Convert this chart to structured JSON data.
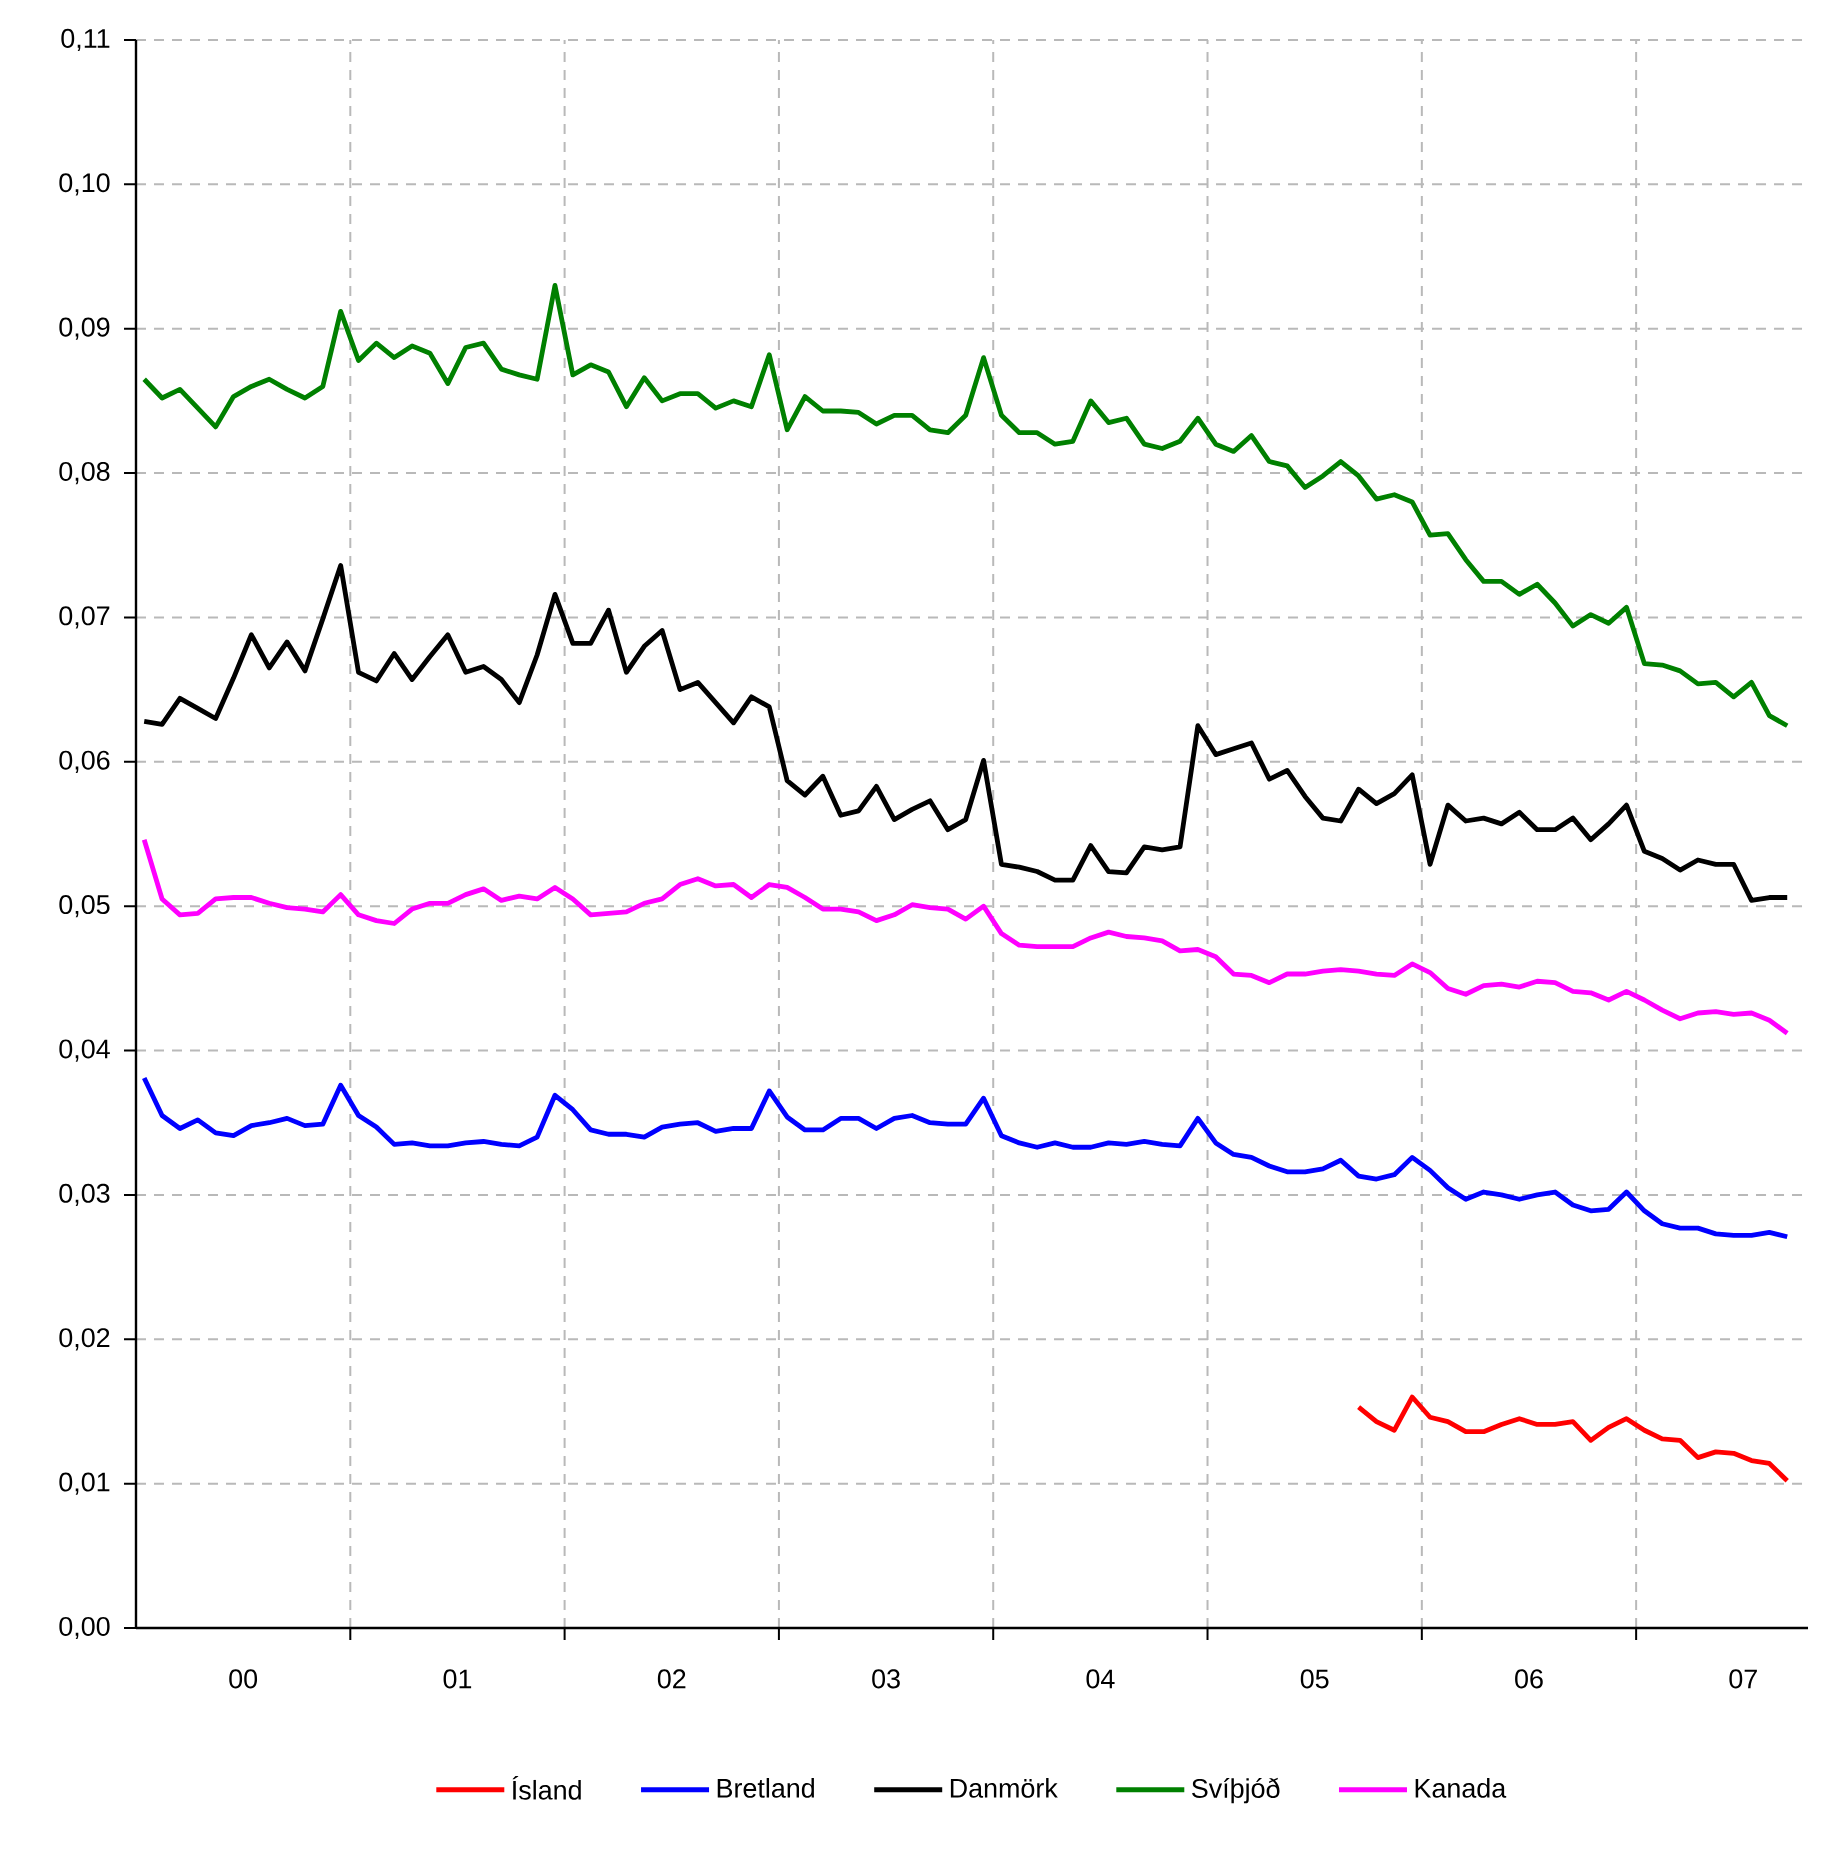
{
  "chart_data": {
    "type": "line",
    "x": [
      "2000-01-15",
      "2000-02-15",
      "2000-03-15",
      "2000-04-15",
      "2000-05-15",
      "2000-06-15",
      "2000-07-15",
      "2000-08-15",
      "2000-09-15",
      "2000-10-15",
      "2000-11-15",
      "2000-12-15",
      "2001-01-15",
      "2001-02-15",
      "2001-03-15",
      "2001-04-15",
      "2001-05-15",
      "2001-06-15",
      "2001-07-15",
      "2001-08-15",
      "2001-09-15",
      "2001-10-15",
      "2001-11-15",
      "2001-12-15",
      "2002-01-15",
      "2002-02-15",
      "2002-03-15",
      "2002-04-15",
      "2002-05-15",
      "2002-06-15",
      "2002-07-15",
      "2002-08-15",
      "2002-09-15",
      "2002-10-15",
      "2002-11-15",
      "2002-12-15",
      "2003-01-15",
      "2003-02-15",
      "2003-03-15",
      "2003-04-15",
      "2003-05-15",
      "2003-06-15",
      "2003-07-15",
      "2003-08-15",
      "2003-09-15",
      "2003-10-15",
      "2003-11-15",
      "2003-12-15",
      "2004-01-15",
      "2004-02-15",
      "2004-03-15",
      "2004-04-15",
      "2004-05-15",
      "2004-06-15",
      "2004-07-15",
      "2004-08-15",
      "2004-09-15",
      "2004-10-15",
      "2004-11-15",
      "2004-12-15",
      "2005-01-15",
      "2005-02-15",
      "2005-03-15",
      "2005-04-15",
      "2005-05-15",
      "2005-06-15",
      "2005-07-15",
      "2005-08-15",
      "2005-09-15",
      "2005-10-15",
      "2005-11-15",
      "2005-12-15",
      "2006-01-15",
      "2006-02-15",
      "2006-03-15",
      "2006-04-15",
      "2006-05-15",
      "2006-06-15",
      "2006-07-15",
      "2006-08-15",
      "2006-09-15",
      "2006-10-15",
      "2006-11-15",
      "2006-12-15",
      "2007-01-15",
      "2007-02-15",
      "2007-03-15",
      "2007-04-15",
      "2007-05-15",
      "2007-06-15",
      "2007-07-15",
      "2007-08-15",
      "2007-09-15"
    ],
    "series": [
      {
        "name": "Ísland",
        "color": "#ff0000",
        "values": [
          null,
          null,
          null,
          null,
          null,
          null,
          null,
          null,
          null,
          null,
          null,
          null,
          null,
          null,
          null,
          null,
          null,
          null,
          null,
          null,
          null,
          null,
          null,
          null,
          null,
          null,
          null,
          null,
          null,
          null,
          null,
          null,
          null,
          null,
          null,
          null,
          null,
          null,
          null,
          null,
          null,
          null,
          null,
          null,
          null,
          null,
          null,
          null,
          null,
          null,
          null,
          null,
          null,
          null,
          null,
          null,
          null,
          null,
          null,
          null,
          null,
          null,
          null,
          null,
          null,
          null,
          null,
          null,
          0.0153,
          0.0143,
          0.0137,
          0.016,
          0.0146,
          0.0143,
          0.0136,
          0.0136,
          0.0141,
          0.0145,
          0.0141,
          0.0141,
          0.0143,
          0.013,
          0.0139,
          0.0145,
          0.0137,
          0.0131,
          0.013,
          0.0118,
          0.0122,
          0.0121,
          0.0116,
          0.0114,
          0.0102
        ]
      },
      {
        "name": "Bretland",
        "color": "#0000ff",
        "values": [
          0.0381,
          0.0355,
          0.0346,
          0.0352,
          0.0343,
          0.0341,
          0.0348,
          0.035,
          0.0353,
          0.0348,
          0.0349,
          0.0376,
          0.0355,
          0.0347,
          0.0335,
          0.0336,
          0.0334,
          0.0334,
          0.0336,
          0.0337,
          0.0335,
          0.0334,
          0.034,
          0.0369,
          0.0359,
          0.0345,
          0.0342,
          0.0342,
          0.034,
          0.0347,
          0.0349,
          0.035,
          0.0344,
          0.0346,
          0.0346,
          0.0372,
          0.0354,
          0.0345,
          0.0345,
          0.0353,
          0.0353,
          0.0346,
          0.0353,
          0.0355,
          0.035,
          0.0349,
          0.0349,
          0.0367,
          0.0341,
          0.0336,
          0.0333,
          0.0336,
          0.0333,
          0.0333,
          0.0336,
          0.0335,
          0.0337,
          0.0335,
          0.0334,
          0.0353,
          0.0336,
          0.0328,
          0.0326,
          0.032,
          0.0316,
          0.0316,
          0.0318,
          0.0324,
          0.0313,
          0.0311,
          0.0314,
          0.0326,
          0.0317,
          0.0305,
          0.0297,
          0.0302,
          0.03,
          0.0297,
          0.03,
          0.0302,
          0.0293,
          0.0289,
          0.029,
          0.0302,
          0.0289,
          0.028,
          0.0277,
          0.0277,
          0.0273,
          0.0272,
          0.0272,
          0.0274,
          0.0271
        ]
      },
      {
        "name": "Danmörk",
        "color": "#000000",
        "values": [
          0.0628,
          0.0626,
          0.0644,
          0.0637,
          0.063,
          0.0658,
          0.0688,
          0.0665,
          0.0683,
          0.0663,
          0.0699,
          0.0736,
          0.0662,
          0.0656,
          0.0675,
          0.0657,
          0.0673,
          0.0688,
          0.0662,
          0.0666,
          0.0657,
          0.0641,
          0.0674,
          0.0716,
          0.0682,
          0.0682,
          0.0705,
          0.0662,
          0.068,
          0.0691,
          0.065,
          0.0655,
          0.0641,
          0.0627,
          0.0645,
          0.0638,
          0.0587,
          0.0577,
          0.059,
          0.0563,
          0.0566,
          0.0583,
          0.056,
          0.0567,
          0.0573,
          0.0553,
          0.056,
          0.0601,
          0.0529,
          0.0527,
          0.0524,
          0.0518,
          0.0518,
          0.0542,
          0.0524,
          0.0523,
          0.0541,
          0.0539,
          0.0541,
          0.0625,
          0.0605,
          0.0609,
          0.0613,
          0.0588,
          0.0594,
          0.0576,
          0.0561,
          0.0559,
          0.0581,
          0.0571,
          0.0578,
          0.0591,
          0.0529,
          0.057,
          0.0559,
          0.0561,
          0.0557,
          0.0565,
          0.0553,
          0.0553,
          0.0561,
          0.0546,
          0.0557,
          0.057,
          0.0538,
          0.0533,
          0.0525,
          0.0532,
          0.0529,
          0.0529,
          0.0504,
          0.0506,
          0.0506
        ]
      },
      {
        "name": "Svíþjóð",
        "color": "#008000",
        "values": [
          0.0865,
          0.0852,
          0.0858,
          0.0845,
          0.0832,
          0.0853,
          0.086,
          0.0865,
          0.0858,
          0.0852,
          0.086,
          0.0912,
          0.0878,
          0.089,
          0.088,
          0.0888,
          0.0883,
          0.0862,
          0.0887,
          0.089,
          0.0872,
          0.0868,
          0.0865,
          0.093,
          0.0868,
          0.0875,
          0.087,
          0.0846,
          0.0866,
          0.085,
          0.0855,
          0.0855,
          0.0845,
          0.085,
          0.0846,
          0.0882,
          0.083,
          0.0853,
          0.0843,
          0.0843,
          0.0842,
          0.0834,
          0.084,
          0.084,
          0.083,
          0.0828,
          0.084,
          0.088,
          0.084,
          0.0828,
          0.0828,
          0.082,
          0.0822,
          0.085,
          0.0835,
          0.0838,
          0.082,
          0.0817,
          0.0822,
          0.0838,
          0.082,
          0.0815,
          0.0826,
          0.0808,
          0.0805,
          0.079,
          0.0798,
          0.0808,
          0.0798,
          0.0782,
          0.0785,
          0.078,
          0.0757,
          0.0758,
          0.074,
          0.0725,
          0.0725,
          0.0716,
          0.0723,
          0.071,
          0.0694,
          0.0702,
          0.0696,
          0.0707,
          0.0668,
          0.0667,
          0.0663,
          0.0654,
          0.0655,
          0.0645,
          0.0655,
          0.0632,
          0.0625
        ]
      },
      {
        "name": "Kanada",
        "color": "#ff00ff",
        "values": [
          0.0546,
          0.0505,
          0.0494,
          0.0495,
          0.0505,
          0.0506,
          0.0506,
          0.0502,
          0.0499,
          0.0498,
          0.0496,
          0.0508,
          0.0494,
          0.049,
          0.0488,
          0.0498,
          0.0502,
          0.0502,
          0.0508,
          0.0512,
          0.0504,
          0.0507,
          0.0505,
          0.0513,
          0.0505,
          0.0494,
          0.0495,
          0.0496,
          0.0502,
          0.0505,
          0.0515,
          0.0519,
          0.0514,
          0.0515,
          0.0506,
          0.0515,
          0.0513,
          0.0506,
          0.0498,
          0.0498,
          0.0496,
          0.049,
          0.0494,
          0.0501,
          0.0499,
          0.0498,
          0.0491,
          0.05,
          0.0481,
          0.0473,
          0.0472,
          0.0472,
          0.0472,
          0.0478,
          0.0482,
          0.0479,
          0.0478,
          0.0476,
          0.0469,
          0.047,
          0.0465,
          0.0453,
          0.0452,
          0.0447,
          0.0453,
          0.0453,
          0.0455,
          0.0456,
          0.0455,
          0.0453,
          0.0452,
          0.046,
          0.0454,
          0.0443,
          0.0439,
          0.0445,
          0.0446,
          0.0444,
          0.0448,
          0.0447,
          0.0441,
          0.044,
          0.0435,
          0.0441,
          0.0435,
          0.0428,
          0.0422,
          0.0426,
          0.0427,
          0.0425,
          0.0426,
          0.0421,
          0.0412
        ]
      }
    ],
    "xlim": [
      "2000-01-01",
      "2007-10-20"
    ],
    "xticks": [
      {
        "value": "2001-01-01",
        "label": null
      },
      {
        "value": "2002-01-01",
        "label": null
      },
      {
        "value": "2003-01-01",
        "label": null
      },
      {
        "value": "2004-01-01",
        "label": null
      },
      {
        "value": "2005-01-01",
        "label": null
      },
      {
        "value": "2006-01-01",
        "label": null
      },
      {
        "value": "2007-01-01",
        "label": null
      },
      {
        "value": "2000-07-01",
        "label": "00"
      },
      {
        "value": "2001-07-01",
        "label": "01"
      },
      {
        "value": "2002-07-01",
        "label": "02"
      },
      {
        "value": "2003-07-01",
        "label": "03"
      },
      {
        "value": "2004-07-01",
        "label": "04"
      },
      {
        "value": "2005-07-01",
        "label": "05"
      },
      {
        "value": "2006-07-01",
        "label": "06"
      },
      {
        "value": "2007-07-01",
        "label": "07"
      }
    ],
    "ylim": [
      0,
      0.11
    ],
    "yticks": [
      {
        "value": 0,
        "label": "0,00"
      },
      {
        "value": 0.01,
        "label": "0,01"
      },
      {
        "value": 0.02,
        "label": "0,02"
      },
      {
        "value": 0.03,
        "label": "0,03"
      },
      {
        "value": 0.04,
        "label": "0,04"
      },
      {
        "value": 0.05,
        "label": "0,05"
      },
      {
        "value": 0.06,
        "label": "0,06"
      },
      {
        "value": 0.07,
        "label": "0,07"
      },
      {
        "value": 0.08,
        "label": "0,08"
      },
      {
        "value": 0.09,
        "label": "0,09"
      },
      {
        "value": 0.1,
        "label": "0,10"
      },
      {
        "value": 0.11,
        "label": "0,11"
      }
    ],
    "grid": true,
    "legend": "bottom",
    "marker": "none",
    "line_style": "solid"
  }
}
